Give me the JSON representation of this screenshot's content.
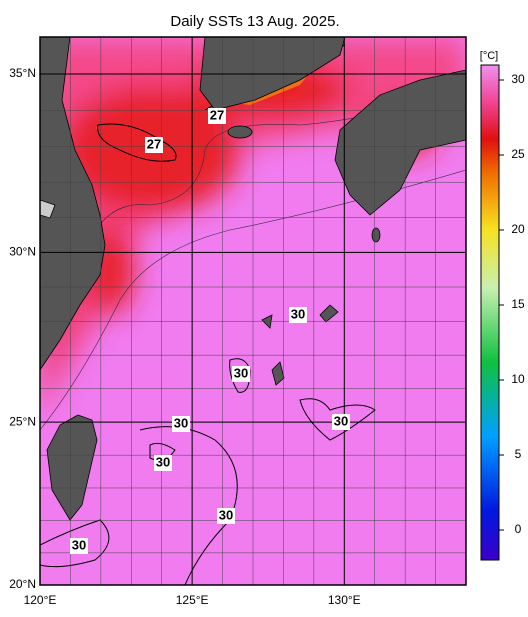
{
  "map": {
    "title": "Daily SSTs 13 Aug. 2025.",
    "lon_ticks": [
      {
        "value": 120,
        "label": "120°E"
      },
      {
        "value": 125,
        "label": "125°E"
      },
      {
        "value": 130,
        "label": "130°E"
      }
    ],
    "lat_ticks": [
      {
        "value": 20,
        "label": "20°N"
      },
      {
        "value": 25,
        "label": "25°N"
      },
      {
        "value": 30,
        "label": "30°N"
      },
      {
        "value": 35,
        "label": "35°N"
      }
    ],
    "lonlim": [
      120,
      134
    ],
    "latlim": [
      20,
      36
    ],
    "contour_labels": [
      "27",
      "27",
      "30",
      "30",
      "30",
      "30",
      "30",
      "30",
      "30"
    ],
    "colorbar": {
      "unit": "[°C]",
      "lim": [
        -2,
        31
      ],
      "ticks": [
        0,
        5,
        10,
        15,
        20,
        25,
        30
      ]
    }
  }
}
